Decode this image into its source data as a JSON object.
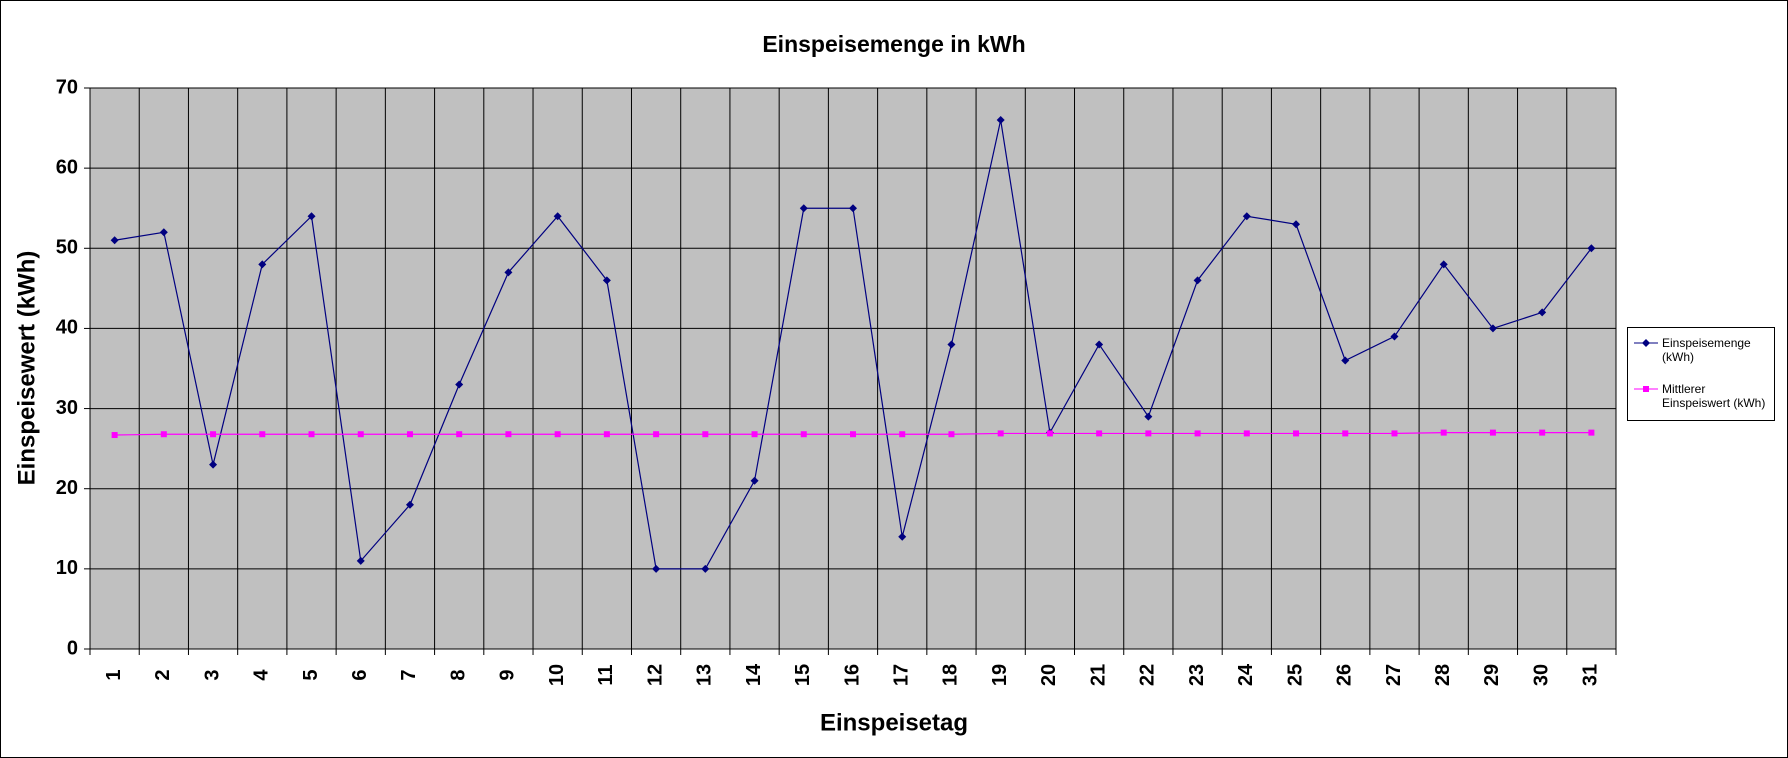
{
  "chart_data": {
    "type": "line",
    "title": "Einspeisemenge in kWh",
    "x_label": "Einspeisetag",
    "y_label": "Einspeisewert  (kWh)",
    "categories": [
      "1",
      "2",
      "3",
      "4",
      "5",
      "6",
      "7",
      "8",
      "9",
      "10",
      "11",
      "12",
      "13",
      "14",
      "15",
      "16",
      "17",
      "18",
      "19",
      "20",
      "21",
      "22",
      "23",
      "24",
      "25",
      "26",
      "27",
      "28",
      "29",
      "30",
      "31"
    ],
    "series": [
      {
        "name": "Einspeisemenge (kWh)",
        "color": "#000080",
        "marker": "diamond",
        "values": [
          51,
          52,
          23,
          48,
          54,
          11,
          18,
          33,
          47,
          54,
          46,
          10,
          10,
          21,
          55,
          55,
          14,
          38,
          66,
          27,
          38,
          29,
          46,
          54,
          53,
          36,
          39,
          48,
          40,
          42,
          50
        ]
      },
      {
        "name": "Mittlerer Einspeiswert (kWh)",
        "color": "#ff00ff",
        "marker": "square",
        "values": [
          26.7,
          26.8,
          26.8,
          26.8,
          26.8,
          26.8,
          26.8,
          26.8,
          26.8,
          26.8,
          26.8,
          26.8,
          26.8,
          26.8,
          26.8,
          26.8,
          26.8,
          26.8,
          26.9,
          26.9,
          26.9,
          26.9,
          26.9,
          26.9,
          26.9,
          26.9,
          26.9,
          27.0,
          27.0,
          27.0,
          27.0
        ]
      }
    ],
    "ylim": [
      0,
      70
    ],
    "yticks": [
      0,
      10,
      20,
      30,
      40,
      50,
      60,
      70
    ],
    "grid": true,
    "legend": "right"
  }
}
